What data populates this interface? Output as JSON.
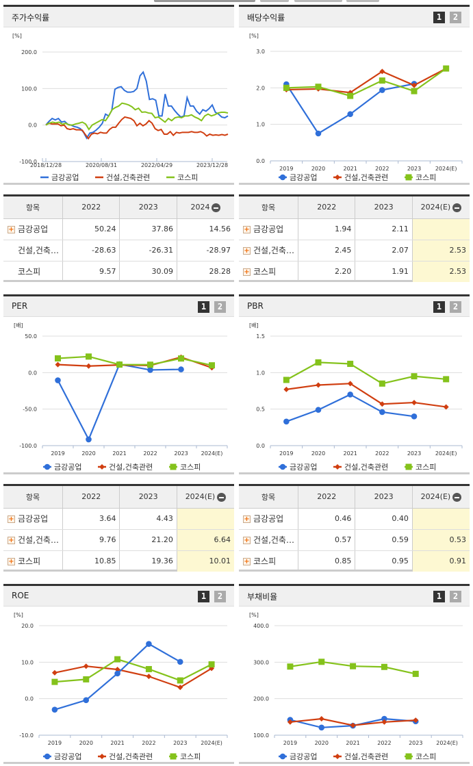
{
  "colors": {
    "company": "#2f6fd9",
    "industry": "#d03e10",
    "kospi": "#84c21b",
    "header_bg": "#f0f0f0",
    "estimate_bg": "#fdf8d2",
    "page_active": "#333333",
    "page_inactive": "#aaaaaa"
  },
  "legend": {
    "company": "금강공업",
    "industry": "건설,건축관련",
    "kospi": "코스피"
  },
  "pager": {
    "page1": "1",
    "page2": "2"
  },
  "panels": {
    "stock_return": {
      "title": "주가수익률"
    },
    "dividend": {
      "title": "배당수익률"
    },
    "per": {
      "title": "PER"
    },
    "pbr": {
      "title": "PBR"
    },
    "roe": {
      "title": "ROE"
    },
    "debt": {
      "title": "부채비율"
    }
  },
  "tables": {
    "stock_return": {
      "headers": [
        "항목",
        "2022",
        "2023",
        "2024"
      ],
      "rows": [
        {
          "name": "금강공업",
          "expandable": true,
          "values": [
            "50.24",
            "37.86",
            "14.56"
          ]
        },
        {
          "name": "건설,건축…",
          "expandable": false,
          "values": [
            "-28.63",
            "-26.31",
            "-28.97"
          ]
        },
        {
          "name": "코스피",
          "expandable": false,
          "values": [
            "9.57",
            "30.09",
            "28.28"
          ]
        }
      ]
    },
    "dividend": {
      "headers": [
        "항목",
        "2022",
        "2023",
        "2024(E)"
      ],
      "rows": [
        {
          "name": "금강공업",
          "expandable": true,
          "values": [
            "1.94",
            "2.11",
            ""
          ]
        },
        {
          "name": "건설,건축…",
          "expandable": true,
          "values": [
            "2.45",
            "2.07",
            "2.53"
          ]
        },
        {
          "name": "코스피",
          "expandable": true,
          "values": [
            "2.20",
            "1.91",
            "2.53"
          ]
        }
      ]
    },
    "per": {
      "headers": [
        "항목",
        "2022",
        "2023",
        "2024(E)"
      ],
      "rows": [
        {
          "name": "금강공업",
          "expandable": true,
          "values": [
            "3.64",
            "4.43",
            ""
          ]
        },
        {
          "name": "건설,건축…",
          "expandable": true,
          "values": [
            "9.76",
            "21.20",
            "6.64"
          ]
        },
        {
          "name": "코스피",
          "expandable": true,
          "values": [
            "10.85",
            "19.36",
            "10.01"
          ]
        }
      ]
    },
    "pbr": {
      "headers": [
        "항목",
        "2022",
        "2023",
        "2024(E)"
      ],
      "rows": [
        {
          "name": "금강공업",
          "expandable": true,
          "values": [
            "0.46",
            "0.40",
            ""
          ]
        },
        {
          "name": "건설,건축…",
          "expandable": true,
          "values": [
            "0.57",
            "0.59",
            "0.53"
          ]
        },
        {
          "name": "코스피",
          "expandable": true,
          "values": [
            "0.85",
            "0.95",
            "0.91"
          ]
        }
      ]
    }
  },
  "chart_data": [
    {
      "id": "stock_return",
      "type": "line",
      "title": "주가수익률",
      "ylabel": "[%]",
      "ylim": [
        -100,
        200
      ],
      "yticks": [
        "200.0",
        "100.0",
        "0.0",
        "-100.0"
      ],
      "xticks": [
        "2018/12/28",
        "2020/08/31",
        "2022/04/29",
        "2023/12/28"
      ],
      "grid": true,
      "legend_position": "bottom",
      "series": [
        {
          "name": "금강공업",
          "values": [
            0,
            10,
            18,
            14,
            18,
            8,
            10,
            2,
            0,
            -4,
            -6,
            -10,
            -20,
            -36,
            -22,
            -20,
            -14,
            -6,
            5,
            30,
            25,
            40,
            98,
            103,
            105,
            95,
            90,
            90,
            92,
            100,
            135,
            145,
            120,
            70,
            72,
            68,
            25,
            25,
            85,
            52,
            52,
            40,
            30,
            22,
            25,
            75,
            52,
            52,
            38,
            30,
            42,
            38,
            45,
            55,
            35,
            30,
            22,
            20,
            25
          ]
        },
        {
          "name": "건설,건축관련",
          "values": [
            0,
            5,
            3,
            3,
            3,
            -2,
            0,
            -10,
            -12,
            -10,
            -13,
            -13,
            -14,
            -26,
            -37,
            -25,
            -22,
            -24,
            -20,
            -22,
            -22,
            -12,
            -6,
            -6,
            5,
            15,
            22,
            20,
            18,
            12,
            -2,
            5,
            -2,
            3,
            12,
            5,
            -10,
            -15,
            -12,
            -25,
            -25,
            -18,
            -28,
            -20,
            -22,
            -20,
            -20,
            -20,
            -18,
            -20,
            -20,
            -18,
            -22,
            -30,
            -25,
            -28,
            -27,
            -28,
            -26,
            -28,
            -25
          ]
        },
        {
          "name": "코스피",
          "values": [
            0,
            5,
            8,
            6,
            8,
            2,
            5,
            0,
            0,
            3,
            5,
            8,
            3,
            -12,
            0,
            5,
            10,
            15,
            12,
            25,
            42,
            48,
            52,
            60,
            58,
            55,
            50,
            42,
            46,
            35,
            36,
            33,
            32,
            20,
            22,
            15,
            8,
            18,
            12,
            20,
            22,
            20,
            25,
            25,
            28,
            22,
            18,
            12,
            25,
            30,
            25,
            28,
            33,
            35,
            35,
            33
          ]
        }
      ]
    },
    {
      "id": "dividend",
      "type": "line",
      "title": "배당수익률",
      "ylabel": "[%]",
      "ylim": [
        0,
        3
      ],
      "yticks": [
        "3.0",
        "2.0",
        "1.0",
        "0.0"
      ],
      "categories": [
        "2019",
        "2020",
        "2021",
        "2022",
        "2023",
        "2024(E)"
      ],
      "series": [
        {
          "name": "금강공업",
          "values": [
            2.1,
            0.75,
            1.28,
            1.94,
            2.11,
            null
          ]
        },
        {
          "name": "건설,건축관련",
          "values": [
            1.95,
            1.97,
            1.87,
            2.45,
            2.07,
            2.53
          ]
        },
        {
          "name": "코스피",
          "values": [
            2.0,
            2.03,
            1.78,
            2.2,
            1.91,
            2.53
          ]
        }
      ]
    },
    {
      "id": "per",
      "type": "line",
      "title": "PER",
      "ylabel": "[배]",
      "ylim": [
        -100,
        50
      ],
      "yticks": [
        "50.0",
        "0.0",
        "-50.0",
        "-100.0"
      ],
      "categories": [
        "2019",
        "2020",
        "2021",
        "2022",
        "2023",
        "2024(E)"
      ],
      "series": [
        {
          "name": "금강공업",
          "values": [
            -10.5,
            -91.5,
            11.5,
            3.64,
            4.43,
            null
          ]
        },
        {
          "name": "건설,건축관련",
          "values": [
            11.0,
            9.0,
            10.5,
            9.76,
            21.2,
            6.64
          ]
        },
        {
          "name": "코스피",
          "values": [
            19.5,
            22.0,
            11.0,
            10.85,
            19.36,
            10.01
          ]
        }
      ]
    },
    {
      "id": "pbr",
      "type": "line",
      "title": "PBR",
      "ylabel": "[배]",
      "ylim": [
        0,
        1.5
      ],
      "yticks": [
        "1.5",
        "1.0",
        "0.5",
        "0.0"
      ],
      "categories": [
        "2019",
        "2020",
        "2021",
        "2022",
        "2023",
        "2024(E)"
      ],
      "series": [
        {
          "name": "금강공업",
          "values": [
            0.33,
            0.49,
            0.7,
            0.46,
            0.4,
            null
          ]
        },
        {
          "name": "건설,건축관련",
          "values": [
            0.77,
            0.83,
            0.85,
            0.57,
            0.59,
            0.53
          ]
        },
        {
          "name": "코스피",
          "values": [
            0.9,
            1.14,
            1.12,
            0.85,
            0.95,
            0.91
          ]
        }
      ]
    },
    {
      "id": "roe",
      "type": "line",
      "title": "ROE",
      "ylabel": "[%]",
      "ylim": [
        -10,
        20
      ],
      "yticks": [
        "20.0",
        "10.0",
        "0.0",
        "-10.0"
      ],
      "categories": [
        "2019",
        "2020",
        "2021",
        "2022",
        "2023",
        "2024(E)"
      ],
      "series": [
        {
          "name": "금강공업",
          "values": [
            -3.0,
            -0.4,
            6.9,
            15.0,
            10.1,
            null
          ]
        },
        {
          "name": "건설,건축관련",
          "values": [
            7.1,
            8.9,
            8.0,
            6.1,
            3.1,
            8.3
          ]
        },
        {
          "name": "코스피",
          "values": [
            4.6,
            5.3,
            10.8,
            8.1,
            5.0,
            9.4
          ]
        }
      ]
    },
    {
      "id": "debt",
      "type": "line",
      "title": "부채비율",
      "ylabel": "[%]",
      "ylim": [
        100,
        400
      ],
      "yticks": [
        "400.0",
        "300.0",
        "200.0",
        "100.0"
      ],
      "categories": [
        "2019",
        "2020",
        "2021",
        "2022",
        "2023",
        "2024(E)"
      ],
      "series": [
        {
          "name": "금강공업",
          "values": [
            142,
            121,
            126,
            145,
            138,
            null
          ]
        },
        {
          "name": "건설,건축관련",
          "values": [
            136,
            145,
            127,
            136,
            141,
            null
          ]
        },
        {
          "name": "코스피",
          "values": [
            288,
            301,
            289,
            287,
            268,
            null
          ]
        }
      ]
    }
  ]
}
